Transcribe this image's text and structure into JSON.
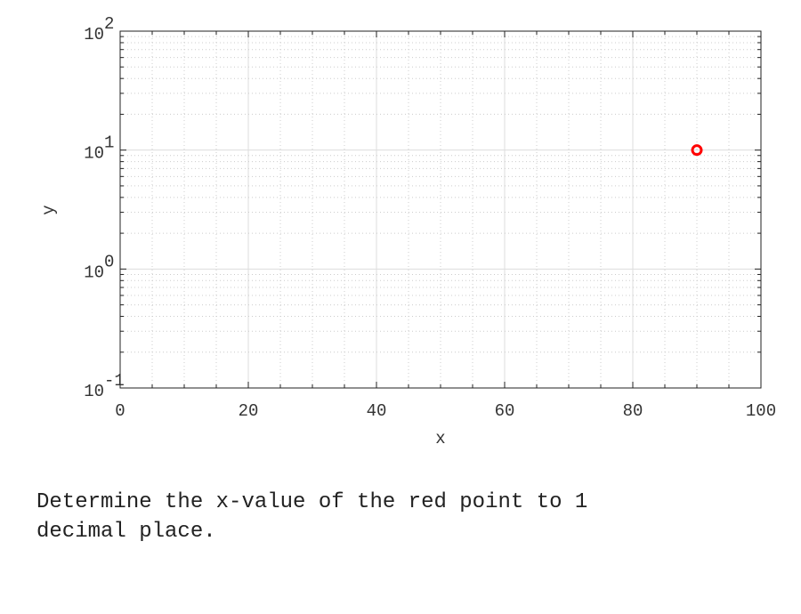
{
  "chart_data": {
    "type": "scatter",
    "xlabel": "x",
    "ylabel": "y",
    "xlim": [
      0,
      100
    ],
    "ylim": [
      0.1,
      100
    ],
    "yscale": "log",
    "xticks": [
      0,
      20,
      40,
      60,
      80,
      100
    ],
    "yticks": [
      {
        "base": "10",
        "exp": "-1",
        "value": 0.1
      },
      {
        "base": "10",
        "exp": "0",
        "value": 1
      },
      {
        "base": "10",
        "exp": "1",
        "value": 10
      },
      {
        "base": "10",
        "exp": "2",
        "value": 100
      }
    ],
    "grid": true,
    "points": [
      {
        "x": 90.0,
        "y": 10,
        "color": "#ff0000",
        "marker": "open-circle"
      }
    ]
  },
  "question": "Determine the x-value of the red point to 1\ndecimal place."
}
